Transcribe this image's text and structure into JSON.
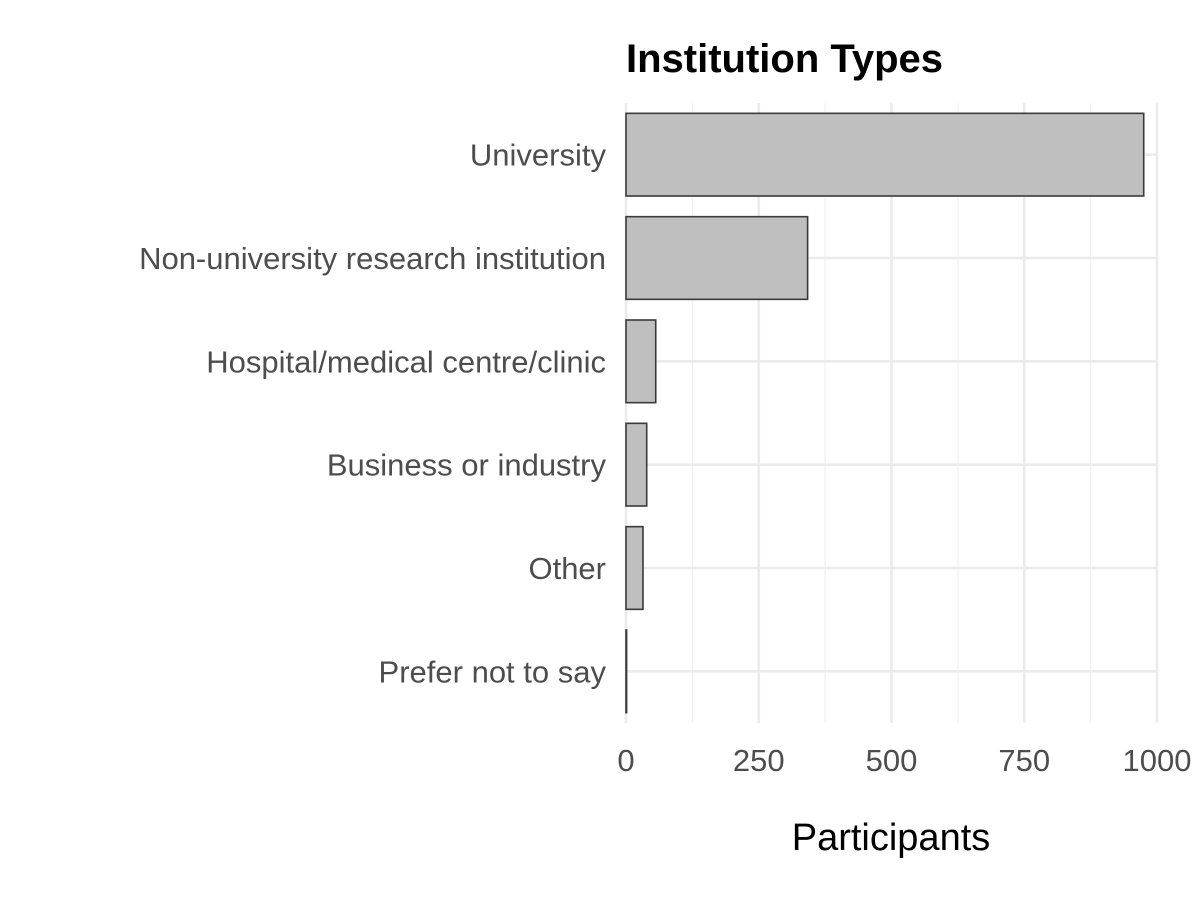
{
  "chart_data": {
    "type": "bar",
    "orientation": "horizontal",
    "title": "Institution Types",
    "xlabel": "Participants",
    "ylabel": "",
    "categories": [
      "University",
      "Non-university research institution",
      "Hospital/medical centre/clinic",
      "Business or industry",
      "Other",
      "Prefer not to say"
    ],
    "values": [
      975,
      342,
      56,
      39,
      32,
      1
    ],
    "xlim": [
      0,
      1000
    ],
    "xticks": [
      0,
      250,
      500,
      750,
      1000
    ],
    "xtick_labels": [
      "0",
      "250",
      "500",
      "750",
      "1000"
    ],
    "grid": true,
    "legend": "none",
    "colors": {
      "bar_fill": "#bfbfbf",
      "bar_stroke": "#3a3a3a",
      "grid": "#ebebeb",
      "label_text": "#4d4d4d"
    }
  }
}
